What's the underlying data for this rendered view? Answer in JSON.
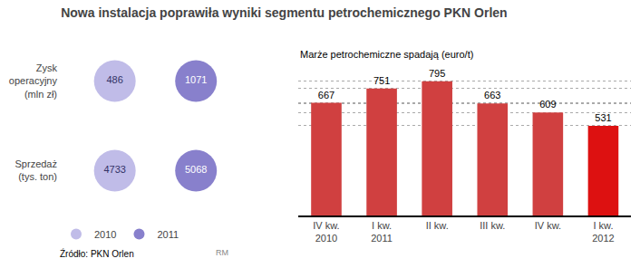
{
  "chart_data": [
    {
      "type": "bubble",
      "title": "Nowa instalacja poprawiła wyniki segmentu petrochemicznego PKN Orlen",
      "categories": [
        "Zysk\noperacyjny\n(mln zł)",
        "Sprzedaż\n(tys. ton)"
      ],
      "series": [
        {
          "name": "2010",
          "color": "#c0bce8",
          "values": [
            486,
            4733
          ]
        },
        {
          "name": "2011",
          "color": "#8880cc",
          "values": [
            1071,
            5068
          ]
        }
      ],
      "data_labels": true,
      "tick_labels": "y",
      "legend": "bottom",
      "marker": "circle",
      "annotations": [
        "Źródło: PKN Orlen",
        "RM"
      ]
    },
    {
      "type": "bar",
      "title": "Marże petrochemiczne spadają (euro/t)",
      "categories": [
        "IV kw.\n2010",
        "I kw.\n2011",
        "II kw.",
        "III kw.",
        "IV kw.",
        "I kw.\n2012"
      ],
      "values": [
        667,
        751,
        795,
        663,
        609,
        531
      ],
      "colors": [
        "#d04040",
        "#d04040",
        "#d04040",
        "#d04040",
        "#d04040",
        "#dd1111"
      ],
      "ylim": [
        0,
        870
      ],
      "yticks": [
        531,
        609,
        663,
        667,
        751,
        795
      ],
      "grid": true,
      "data_labels": true,
      "tick_labels": "x"
    }
  ]
}
